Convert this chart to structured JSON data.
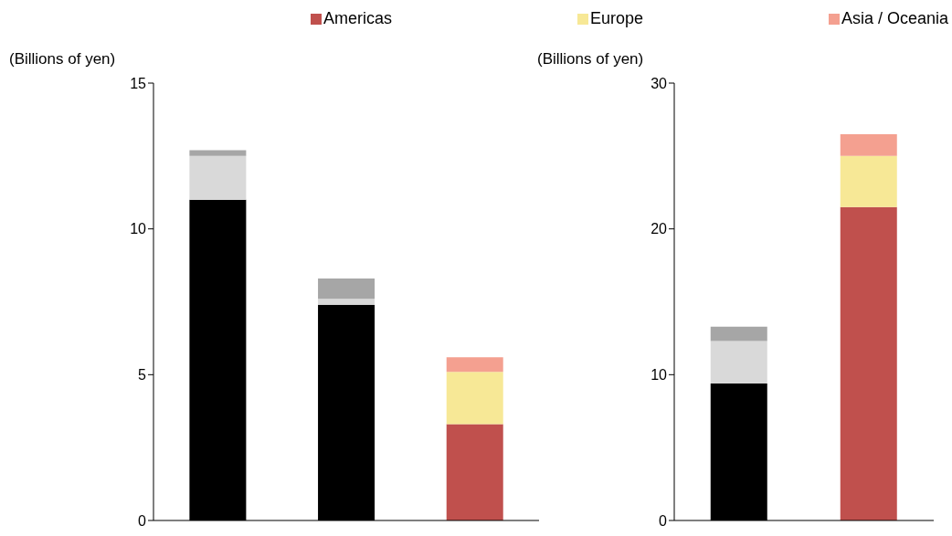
{
  "chart_data": [
    {
      "type": "bar",
      "stacked": true,
      "ylabel": "(Billions of yen)",
      "categories": [
        null,
        null,
        null
      ],
      "ylim": [
        0,
        15
      ],
      "yticks": [
        0,
        5,
        10,
        15
      ],
      "grid": false,
      "legend": "top",
      "series": [
        {
          "color": "#000000",
          "values": [
            11.0,
            7.4,
            null
          ]
        },
        {
          "color": "#d9d9d9",
          "values": [
            1.5,
            0.2,
            null
          ]
        },
        {
          "color": "#a6a6a6",
          "values": [
            0.2,
            0.7,
            null
          ]
        },
        {
          "name": "Americas",
          "color": "#c0504d",
          "values": [
            null,
            null,
            3.3
          ]
        },
        {
          "name": "Europe",
          "color": "#f7e896",
          "values": [
            null,
            null,
            1.8
          ]
        },
        {
          "name": "Asia / Oceania",
          "color": "#f4a090",
          "values": [
            null,
            null,
            0.5
          ]
        }
      ]
    },
    {
      "type": "bar",
      "stacked": true,
      "ylabel": "(Billions of yen)",
      "categories": [
        null,
        null
      ],
      "ylim": [
        0,
        30
      ],
      "yticks": [
        0,
        10,
        20,
        30
      ],
      "grid": false,
      "series": [
        {
          "color": "#000000",
          "values": [
            9.4,
            null
          ]
        },
        {
          "color": "#d9d9d9",
          "values": [
            2.9,
            null
          ]
        },
        {
          "color": "#a6a6a6",
          "values": [
            1.0,
            null
          ]
        },
        {
          "color": "#c0504d",
          "values": [
            null,
            21.5
          ]
        },
        {
          "color": "#f7e896",
          "values": [
            null,
            3.5
          ]
        },
        {
          "color": "#f4a090",
          "values": [
            null,
            1.5
          ]
        }
      ]
    }
  ]
}
